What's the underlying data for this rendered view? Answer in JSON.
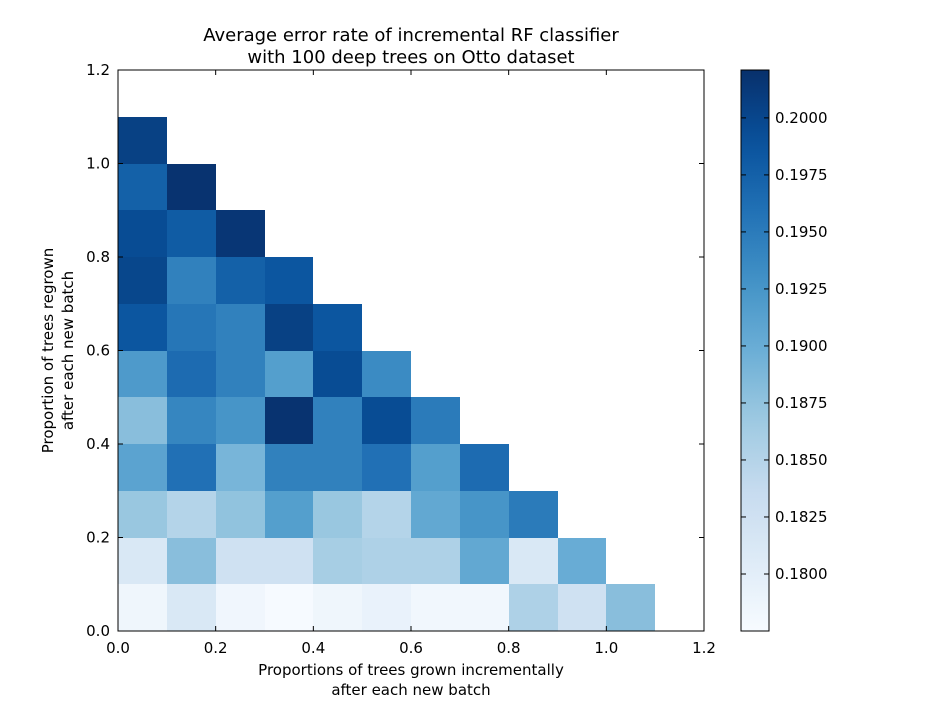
{
  "chart_data": {
    "type": "heatmap",
    "title": "Average error rate of incremental RF classifier\nwith 100 deep trees on Otto dataset",
    "xlabel": "Proportions of trees grown incrementally\nafter each new batch",
    "ylabel": "Proportion of trees regrown\nafter each new batch",
    "xlim": [
      0,
      1.2
    ],
    "ylim": [
      0,
      1.2
    ],
    "x_ticks": [
      "0.0",
      "0.2",
      "0.4",
      "0.6",
      "0.8",
      "1.0",
      "1.2"
    ],
    "y_ticks": [
      "0.0",
      "0.2",
      "0.4",
      "0.6",
      "0.8",
      "1.0",
      "1.2"
    ],
    "cell_size": 0.1,
    "grid": false,
    "colormap": "Blues",
    "colorbar": {
      "range": [
        0.1775,
        0.2021
      ],
      "ticks": [
        "0.1800",
        "0.1825",
        "0.1850",
        "0.1875",
        "0.1900",
        "0.1925",
        "0.1950",
        "0.1975",
        "0.2000"
      ]
    },
    "rows": [
      {
        "y": 0.0,
        "values": [
          0.1785,
          0.1812,
          0.1784,
          0.1776,
          0.1785,
          0.1792,
          0.1782,
          0.1782,
          0.1855,
          0.1825,
          0.188
        ]
      },
      {
        "y": 0.1,
        "values": [
          0.1812,
          0.188,
          0.1825,
          0.1825,
          0.186,
          0.1855,
          0.1855,
          0.1905,
          0.1812,
          0.19
        ]
      },
      {
        "y": 0.2,
        "values": [
          0.187,
          0.185,
          0.1875,
          0.1915,
          0.187,
          0.185,
          0.1905,
          0.1925,
          0.195
        ]
      },
      {
        "y": 0.3,
        "values": [
          0.191,
          0.196,
          0.189,
          0.1945,
          0.1945,
          0.196,
          0.1915,
          0.1965
        ]
      },
      {
        "y": 0.4,
        "values": [
          0.188,
          0.194,
          0.1925,
          0.2018,
          0.1945,
          0.1995,
          0.195
        ]
      },
      {
        "y": 0.5,
        "values": [
          0.192,
          0.1965,
          0.1945,
          0.1915,
          0.1995,
          0.1935
        ]
      },
      {
        "y": 0.6,
        "values": [
          0.1985,
          0.1955,
          0.1945,
          0.2005,
          0.1985
        ]
      },
      {
        "y": 0.7,
        "values": [
          0.2,
          0.1945,
          0.1975,
          0.1985
        ]
      },
      {
        "y": 0.8,
        "values": [
          0.1995,
          0.198,
          0.2015
        ]
      },
      {
        "y": 0.9,
        "values": [
          0.1975,
          0.2018
        ]
      },
      {
        "y": 1.0,
        "values": [
          0.2005
        ]
      }
    ]
  }
}
